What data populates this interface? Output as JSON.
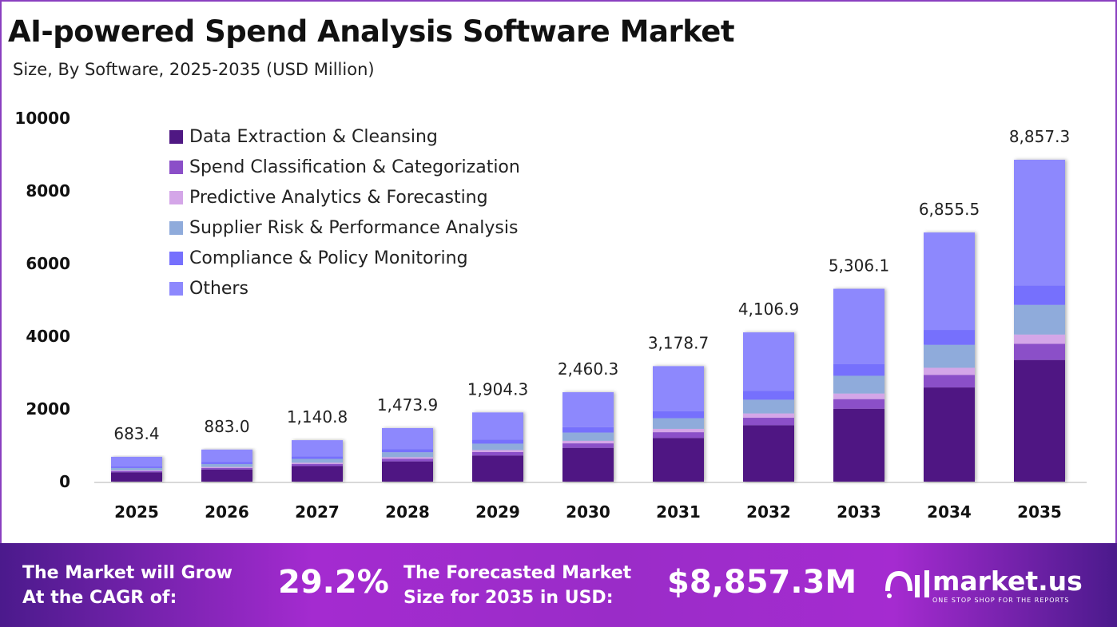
{
  "title": "AI-powered Spend Analysis Software Market",
  "subtitle": "Size, By Software, 2025-2035 (USD Million)",
  "chart_data": {
    "type": "bar",
    "stacked": true,
    "categories": [
      "2025",
      "2026",
      "2027",
      "2028",
      "2029",
      "2030",
      "2031",
      "2032",
      "2033",
      "2034",
      "2035"
    ],
    "totals": [
      "683.4",
      "883.0",
      "1,140.8",
      "1,473.9",
      "1,904.3",
      "2,460.3",
      "3,178.7",
      "4,106.9",
      "5,306.1",
      "6,855.5",
      "8,857.3"
    ],
    "ylim": [
      0,
      10000
    ],
    "yticks": [
      "0",
      "2000",
      "4000",
      "6000",
      "8000",
      "10000"
    ],
    "grid": false,
    "legend_position": "top-left",
    "series": [
      {
        "name": "Data Extraction & Cleansing",
        "color": "#4f1883",
        "values": [
          258.3,
          333.8,
          431.2,
          557.1,
          719.8,
          930.0,
          1201.5,
          1552.4,
          2005.7,
          2591.4,
          3348.1
        ]
      },
      {
        "name": "Spend Classification & Categorization",
        "color": "#8b4fc8",
        "values": [
          34.2,
          44.2,
          57.0,
          73.7,
          95.2,
          123.0,
          158.9,
          205.3,
          265.3,
          342.8,
          442.9
        ]
      },
      {
        "name": "Predictive Analytics & Forecasting",
        "color": "#d4a6e8",
        "values": [
          19.8,
          25.6,
          33.1,
          42.7,
          55.2,
          71.3,
          92.2,
          119.1,
          153.9,
          198.8,
          256.9
        ]
      },
      {
        "name": "Supplier Risk & Performance Analysis",
        "color": "#8fabdb",
        "values": [
          62.9,
          81.2,
          105.0,
          135.6,
          175.2,
          226.3,
          292.4,
          377.8,
          488.2,
          630.7,
          814.9
        ]
      },
      {
        "name": "Compliance & Policy Monitoring",
        "color": "#7670fd",
        "values": [
          41.0,
          53.0,
          68.4,
          88.4,
          114.3,
          147.6,
          190.7,
          246.4,
          318.4,
          411.3,
          531.4
        ]
      },
      {
        "name": "Others",
        "color": "#8d88fd",
        "values": [
          267.2,
          345.2,
          446.1,
          576.4,
          744.6,
          962.1,
          1243.0,
          1605.9,
          2074.6,
          2680.5,
          3463.1
        ]
      }
    ]
  },
  "banner": {
    "cagr_label": "The Market will Grow At the CAGR of:",
    "cagr_value": "29.2%",
    "forecast_label": "The Forecasted Market Size for 2035 in USD:",
    "forecast_value": "$8,857.3M",
    "brand": "market.us",
    "tagline": "ONE STOP SHOP FOR THE REPORTS"
  }
}
